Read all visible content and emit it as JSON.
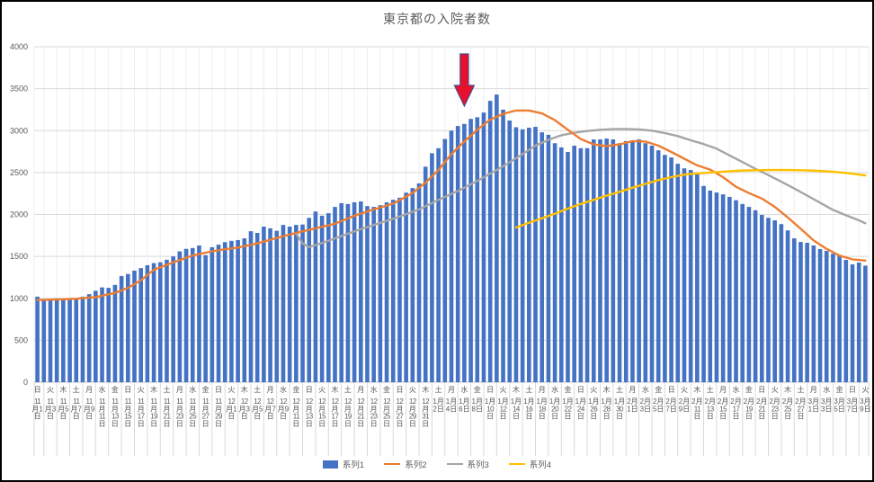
{
  "chart_data": {
    "type": "combo",
    "title": "東京都の入院者数",
    "ylim": [
      0,
      4000
    ],
    "y_ticks": [
      0,
      500,
      1000,
      1500,
      2000,
      2500,
      3000,
      3500,
      4000
    ],
    "grid": true,
    "legend_position": "bottom",
    "x_label_interval_days": 2,
    "x_tick_labels": [
      {
        "w": "日",
        "m": "11",
        "d": "1"
      },
      {
        "w": "火",
        "m": "11",
        "d": "3"
      },
      {
        "w": "木",
        "m": "11",
        "d": "5"
      },
      {
        "w": "土",
        "m": "11",
        "d": "7"
      },
      {
        "w": "月",
        "m": "11",
        "d": "9"
      },
      {
        "w": "水",
        "m": "11",
        "d": "11"
      },
      {
        "w": "金",
        "m": "11",
        "d": "13"
      },
      {
        "w": "日",
        "m": "11",
        "d": "15"
      },
      {
        "w": "火",
        "m": "11",
        "d": "17"
      },
      {
        "w": "木",
        "m": "11",
        "d": "19"
      },
      {
        "w": "土",
        "m": "11",
        "d": "21"
      },
      {
        "w": "月",
        "m": "11",
        "d": "23"
      },
      {
        "w": "水",
        "m": "11",
        "d": "25"
      },
      {
        "w": "金",
        "m": "11",
        "d": "27"
      },
      {
        "w": "日",
        "m": "11",
        "d": "29"
      },
      {
        "w": "火",
        "m": "12",
        "d": "1"
      },
      {
        "w": "木",
        "m": "12",
        "d": "3"
      },
      {
        "w": "土",
        "m": "12",
        "d": "5"
      },
      {
        "w": "月",
        "m": "12",
        "d": "7"
      },
      {
        "w": "水",
        "m": "12",
        "d": "9"
      },
      {
        "w": "金",
        "m": "12",
        "d": "11"
      },
      {
        "w": "日",
        "m": "12",
        "d": "13"
      },
      {
        "w": "火",
        "m": "12",
        "d": "15"
      },
      {
        "w": "木",
        "m": "12",
        "d": "17"
      },
      {
        "w": "土",
        "m": "12",
        "d": "19"
      },
      {
        "w": "月",
        "m": "12",
        "d": "21"
      },
      {
        "w": "水",
        "m": "12",
        "d": "23"
      },
      {
        "w": "金",
        "m": "12",
        "d": "25"
      },
      {
        "w": "日",
        "m": "12",
        "d": "27"
      },
      {
        "w": "火",
        "m": "12",
        "d": "29"
      },
      {
        "w": "木",
        "m": "12",
        "d": "31"
      },
      {
        "w": "土",
        "m": "1",
        "d": "2"
      },
      {
        "w": "月",
        "m": "1",
        "d": "4"
      },
      {
        "w": "水",
        "m": "1",
        "d": "6"
      },
      {
        "w": "金",
        "m": "1",
        "d": "8"
      },
      {
        "w": "日",
        "m": "1",
        "d": "10"
      },
      {
        "w": "火",
        "m": "1",
        "d": "12"
      },
      {
        "w": "木",
        "m": "1",
        "d": "14"
      },
      {
        "w": "土",
        "m": "1",
        "d": "16"
      },
      {
        "w": "月",
        "m": "1",
        "d": "18"
      },
      {
        "w": "水",
        "m": "1",
        "d": "20"
      },
      {
        "w": "金",
        "m": "1",
        "d": "22"
      },
      {
        "w": "日",
        "m": "1",
        "d": "24"
      },
      {
        "w": "火",
        "m": "1",
        "d": "26"
      },
      {
        "w": "木",
        "m": "1",
        "d": "28"
      },
      {
        "w": "土",
        "m": "1",
        "d": "30"
      },
      {
        "w": "月",
        "m": "2",
        "d": "1"
      },
      {
        "w": "水",
        "m": "2",
        "d": "3"
      },
      {
        "w": "金",
        "m": "2",
        "d": "5"
      },
      {
        "w": "日",
        "m": "2",
        "d": "7"
      },
      {
        "w": "火",
        "m": "2",
        "d": "9"
      },
      {
        "w": "木",
        "m": "2",
        "d": "11"
      },
      {
        "w": "土",
        "m": "2",
        "d": "13"
      },
      {
        "w": "月",
        "m": "2",
        "d": "15"
      },
      {
        "w": "水",
        "m": "2",
        "d": "17"
      },
      {
        "w": "金",
        "m": "2",
        "d": "19"
      },
      {
        "w": "日",
        "m": "2",
        "d": "21"
      },
      {
        "w": "火",
        "m": "2",
        "d": "23"
      },
      {
        "w": "木",
        "m": "2",
        "d": "25"
      },
      {
        "w": "土",
        "m": "2",
        "d": "27"
      },
      {
        "w": "月",
        "m": "3",
        "d": "1"
      },
      {
        "w": "水",
        "m": "3",
        "d": "3"
      },
      {
        "w": "金",
        "m": "3",
        "d": "5"
      },
      {
        "w": "日",
        "m": "3",
        "d": "7"
      },
      {
        "w": "火",
        "m": "3",
        "d": "9"
      }
    ],
    "series": [
      {
        "name": "系列1",
        "type": "bar",
        "color": "#4472C4",
        "values": [
          1020,
          975,
          990,
          1000,
          990,
          985,
          1000,
          1020,
          1050,
          1090,
          1130,
          1125,
          1160,
          1265,
          1290,
          1330,
          1360,
          1395,
          1420,
          1430,
          1460,
          1500,
          1560,
          1590,
          1600,
          1630,
          1515,
          1610,
          1640,
          1670,
          1685,
          1695,
          1715,
          1800,
          1780,
          1855,
          1835,
          1805,
          1875,
          1855,
          1875,
          1880,
          1960,
          2035,
          1985,
          2015,
          2090,
          2135,
          2125,
          2145,
          2155,
          2100,
          2090,
          2110,
          2145,
          2175,
          2200,
          2260,
          2315,
          2370,
          2570,
          2730,
          2790,
          2900,
          3000,
          3055,
          3080,
          3140,
          3160,
          3215,
          3355,
          3430,
          3250,
          3120,
          3040,
          3015,
          3035,
          3045,
          2980,
          2950,
          2850,
          2800,
          2745,
          2820,
          2790,
          2790,
          2895,
          2895,
          2905,
          2895,
          2850,
          2875,
          2875,
          2895,
          2850,
          2820,
          2765,
          2710,
          2680,
          2605,
          2550,
          2530,
          2500,
          2340,
          2285,
          2262,
          2240,
          2210,
          2170,
          2125,
          2090,
          2050,
          1995,
          1960,
          1930,
          1885,
          1810,
          1715,
          1672,
          1662,
          1630,
          1587,
          1565,
          1533,
          1512,
          1458,
          1405,
          1426,
          1390
        ]
      },
      {
        "name": "系列2",
        "type": "line",
        "color": "#ED7D31",
        "points": [
          [
            0,
            980
          ],
          [
            3,
            985
          ],
          [
            6,
            995
          ],
          [
            9,
            1015
          ],
          [
            12,
            1065
          ],
          [
            14,
            1125
          ],
          [
            16,
            1215
          ],
          [
            18,
            1340
          ],
          [
            21,
            1430
          ],
          [
            24,
            1510
          ],
          [
            27,
            1560
          ],
          [
            29,
            1585
          ],
          [
            31,
            1605
          ],
          [
            34,
            1655
          ],
          [
            37,
            1720
          ],
          [
            40,
            1780
          ],
          [
            43,
            1835
          ],
          [
            46,
            1890
          ],
          [
            49,
            1985
          ],
          [
            52,
            2060
          ],
          [
            55,
            2130
          ],
          [
            58,
            2255
          ],
          [
            60,
            2380
          ],
          [
            62,
            2530
          ],
          [
            64,
            2720
          ],
          [
            66,
            2870
          ],
          [
            68,
            3010
          ],
          [
            70,
            3130
          ],
          [
            72,
            3200
          ],
          [
            74,
            3240
          ],
          [
            76,
            3240
          ],
          [
            78,
            3205
          ],
          [
            80,
            3125
          ],
          [
            82,
            3010
          ],
          [
            84,
            2900
          ],
          [
            86,
            2835
          ],
          [
            88,
            2815
          ],
          [
            90,
            2835
          ],
          [
            92,
            2875
          ],
          [
            94,
            2870
          ],
          [
            96,
            2820
          ],
          [
            98,
            2745
          ],
          [
            100,
            2665
          ],
          [
            102,
            2585
          ],
          [
            104,
            2535
          ],
          [
            106,
            2445
          ],
          [
            108,
            2330
          ],
          [
            110,
            2255
          ],
          [
            112,
            2190
          ],
          [
            114,
            2090
          ],
          [
            116,
            1965
          ],
          [
            118,
            1830
          ],
          [
            120,
            1690
          ],
          [
            122,
            1590
          ],
          [
            124,
            1510
          ],
          [
            126,
            1465
          ],
          [
            128,
            1450
          ]
        ]
      },
      {
        "name": "系列3",
        "type": "line",
        "color": "#A5A5A5",
        "points": [
          [
            40,
            1770
          ],
          [
            41,
            1655
          ],
          [
            42,
            1610
          ],
          [
            44,
            1660
          ],
          [
            46,
            1715
          ],
          [
            48,
            1770
          ],
          [
            50,
            1825
          ],
          [
            53,
            1900
          ],
          [
            56,
            1975
          ],
          [
            59,
            2060
          ],
          [
            62,
            2175
          ],
          [
            65,
            2280
          ],
          [
            68,
            2400
          ],
          [
            71,
            2530
          ],
          [
            74,
            2670
          ],
          [
            77,
            2820
          ],
          [
            79,
            2890
          ],
          [
            81,
            2945
          ],
          [
            83,
            2975
          ],
          [
            85,
            2995
          ],
          [
            87,
            3010
          ],
          [
            89,
            3018
          ],
          [
            91,
            3020
          ],
          [
            93,
            3015
          ],
          [
            95,
            3000
          ],
          [
            97,
            2970
          ],
          [
            99,
            2935
          ],
          [
            101,
            2885
          ],
          [
            103,
            2840
          ],
          [
            105,
            2785
          ],
          [
            107,
            2705
          ],
          [
            109,
            2625
          ],
          [
            111,
            2545
          ],
          [
            113,
            2470
          ],
          [
            115,
            2390
          ],
          [
            117,
            2310
          ],
          [
            119,
            2225
          ],
          [
            121,
            2140
          ],
          [
            123,
            2055
          ],
          [
            125,
            1990
          ],
          [
            127,
            1930
          ],
          [
            128,
            1895
          ]
        ]
      },
      {
        "name": "系列4",
        "type": "line",
        "color": "#FFC000",
        "points": [
          [
            74,
            1845
          ],
          [
            76,
            1900
          ],
          [
            78,
            1955
          ],
          [
            80,
            2010
          ],
          [
            82,
            2070
          ],
          [
            84,
            2125
          ],
          [
            86,
            2175
          ],
          [
            88,
            2225
          ],
          [
            90,
            2270
          ],
          [
            92,
            2320
          ],
          [
            94,
            2365
          ],
          [
            96,
            2410
          ],
          [
            98,
            2445
          ],
          [
            100,
            2475
          ],
          [
            102,
            2490
          ],
          [
            104,
            2500
          ],
          [
            106,
            2510
          ],
          [
            108,
            2520
          ],
          [
            110,
            2525
          ],
          [
            113,
            2530
          ],
          [
            116,
            2530
          ],
          [
            119,
            2525
          ],
          [
            122,
            2515
          ],
          [
            125,
            2495
          ],
          [
            128,
            2465
          ]
        ]
      }
    ],
    "annotation": {
      "shape": "down-arrow",
      "fill": "#E8112D",
      "border": "#4A4A8C",
      "at_day_index": 66
    },
    "colors": {
      "axis_text": "#595959",
      "gridline": "#D9D9D9",
      "minor_vertical_gridline": "#EFEFEF",
      "axis_line": "#BFBFBF"
    }
  }
}
